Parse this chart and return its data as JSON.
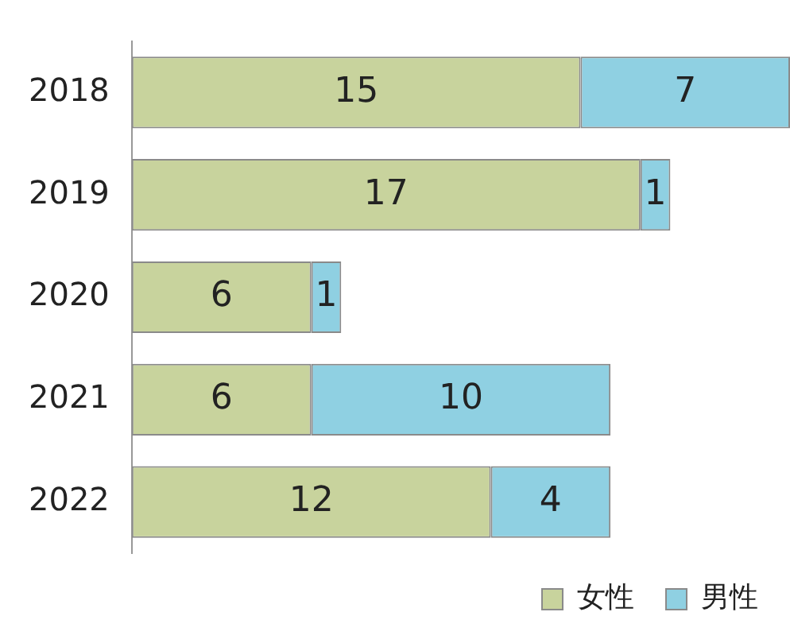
{
  "chart_data": {
    "type": "bar",
    "orientation": "horizontal",
    "stacked": true,
    "data_labels": true,
    "grid": false,
    "legend": "bottom right",
    "categories": [
      "2018",
      "2019",
      "2020",
      "2021",
      "2022"
    ],
    "series": [
      {
        "name": "女性",
        "color": "#c8d39d",
        "values": [
          15,
          17,
          6,
          6,
          12
        ]
      },
      {
        "name": "男性",
        "color": "#8fd0e2",
        "values": [
          7,
          1,
          1,
          10,
          4
        ]
      }
    ]
  }
}
